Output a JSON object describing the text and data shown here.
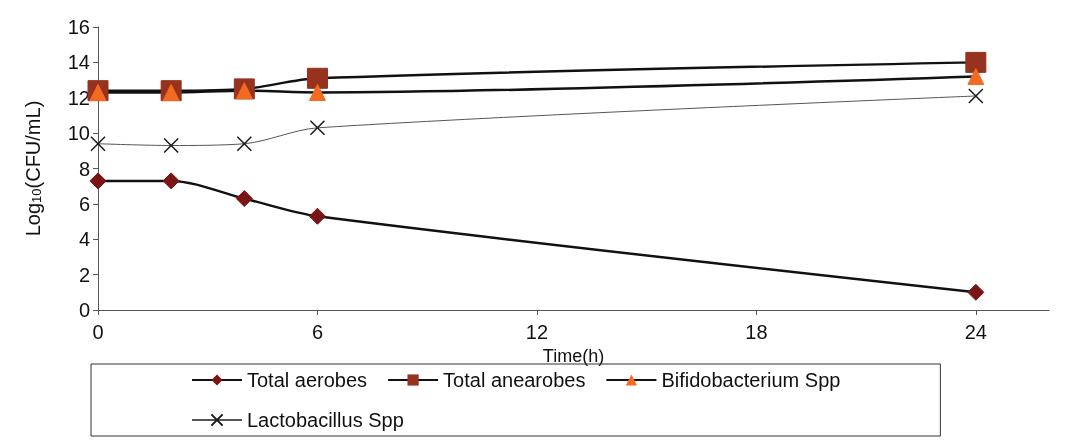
{
  "chart_data": {
    "type": "line",
    "xlabel": "Time(h)",
    "ylabel": "Log$_{10}$(CFU/mL)",
    "xlim": [
      0,
      26
    ],
    "xticks": [
      0,
      6,
      12,
      18,
      24
    ],
    "ylim": [
      0,
      16
    ],
    "yticks": [
      0,
      2,
      4,
      6,
      8,
      10,
      12,
      14,
      16
    ],
    "x": [
      0,
      2,
      4,
      6,
      24
    ],
    "grid": false,
    "legend": "bottom",
    "series": [
      {
        "name": "Total aerobes",
        "color": "#7b1416",
        "marker": "diamond",
        "values": [
          7.3,
          7.3,
          6.3,
          5.3,
          1.0
        ]
      },
      {
        "name": "Total anearobes",
        "color": "#96321e",
        "marker": "square",
        "values": [
          12.4,
          12.4,
          12.5,
          13.1,
          14.0
        ]
      },
      {
        "name": "Bifidobacterium Spp",
        "color": "#f26b21",
        "marker": "triangle",
        "values": [
          12.3,
          12.3,
          12.4,
          12.3,
          13.2
        ]
      },
      {
        "name": "Lactobacillus Spp",
        "color": "#1a1a1a",
        "marker": "cross",
        "values": [
          9.4,
          9.3,
          9.4,
          10.3,
          12.1
        ]
      }
    ]
  }
}
